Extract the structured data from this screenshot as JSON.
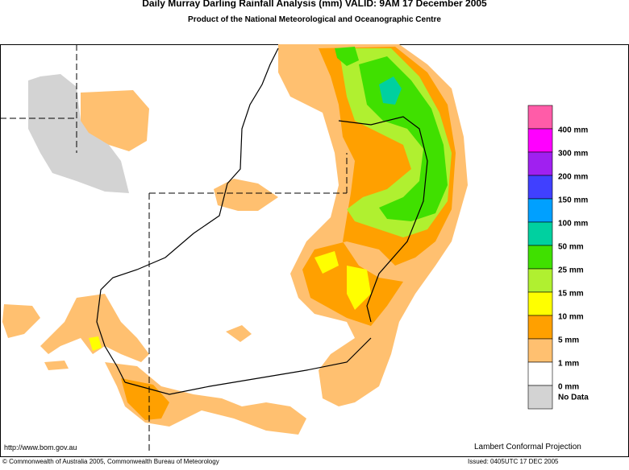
{
  "header": {
    "title": "Daily Murray Darling Rainfall Analysis (mm)  VALID: 9AM 17 December 2005",
    "subtitle": "Product of the National Meteorological and Oceanographic Centre"
  },
  "legend": {
    "colors": [
      "#ff5ca8",
      "#ff00ff",
      "#a020f0",
      "#4040ff",
      "#00a0ff",
      "#00d0a0",
      "#40e000",
      "#b0f030",
      "#ffff00",
      "#ffa000",
      "#ffc070",
      "#ffffff",
      "#d3d3d3"
    ],
    "labels": [
      "400 mm",
      "300 mm",
      "200 mm",
      "150 mm",
      "100 mm",
      "50 mm",
      "25 mm",
      "15 mm",
      "10 mm",
      "5 mm",
      "1 mm",
      "0 mm",
      "No Data"
    ]
  },
  "footer": {
    "url": "http://www.bom.gov.au",
    "projection": "Lambert Conformal Projection",
    "copyright": "© Commonwealth of Australia 2005, Commonwealth Bureau of Meteorology",
    "issued": "Issued: 0405UTC 17 DEC 2005"
  }
}
